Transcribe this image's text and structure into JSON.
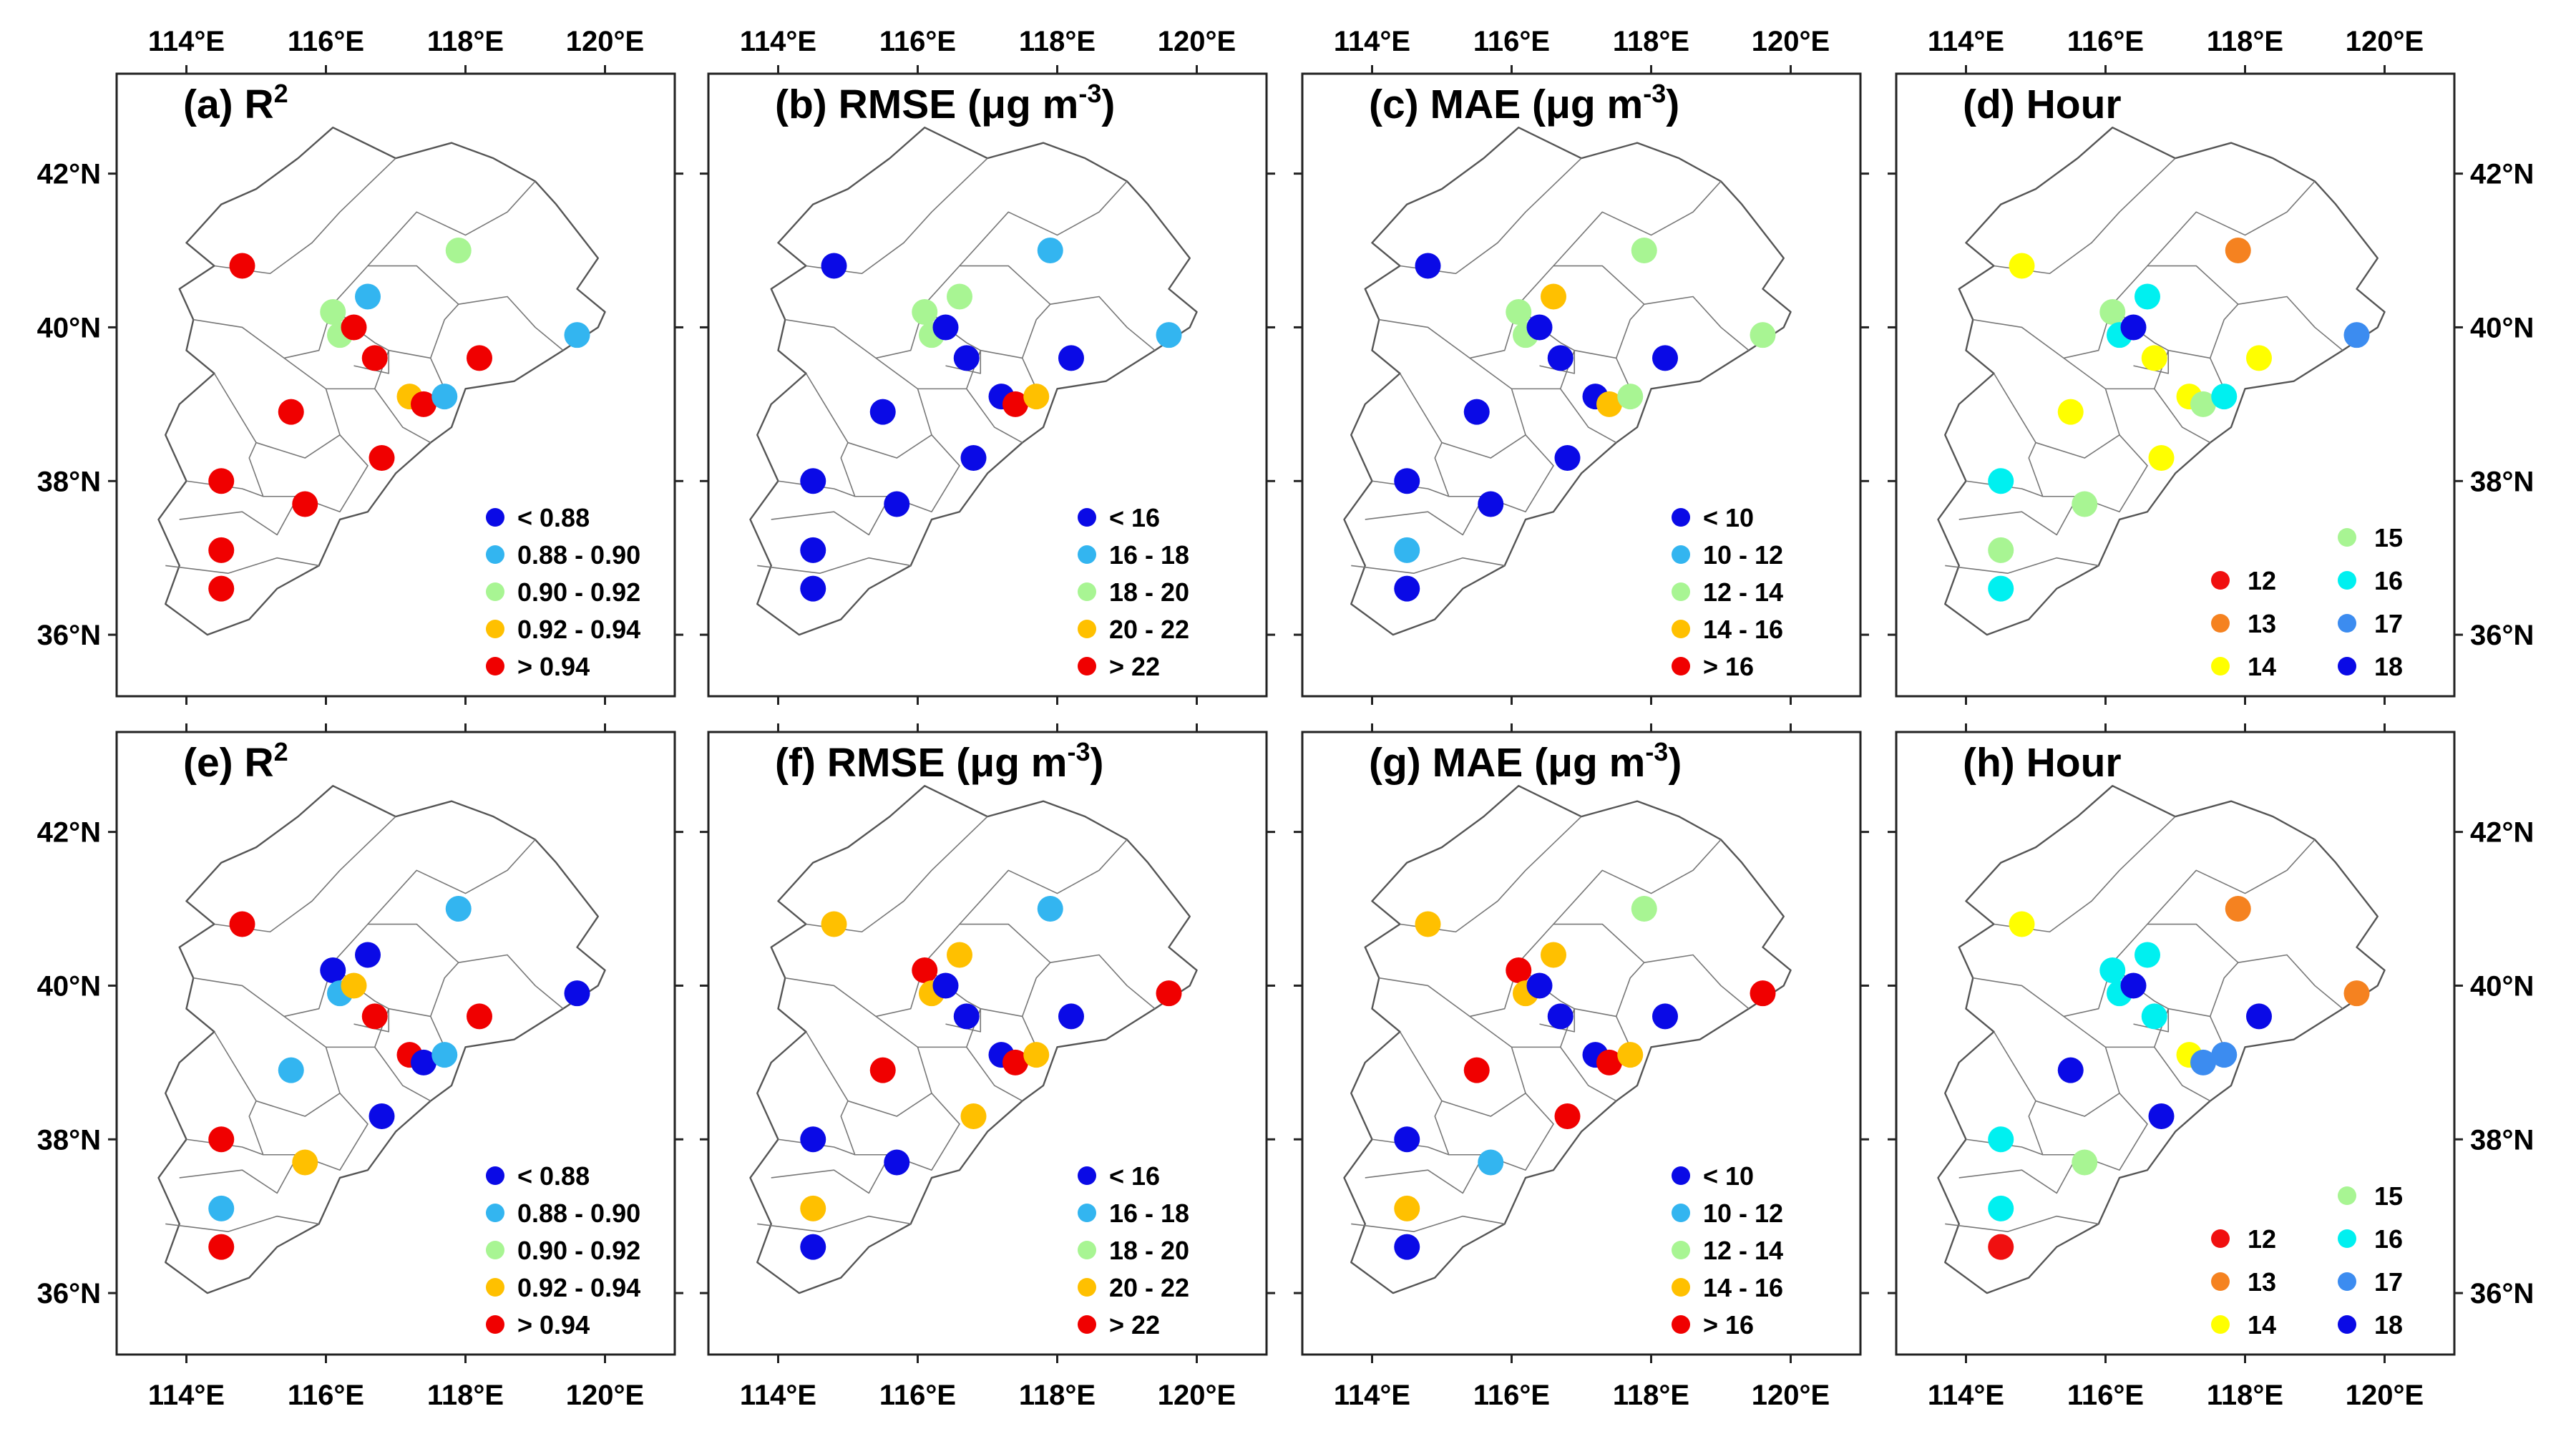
{
  "figure_title": "",
  "axes": {
    "lon_ticks": [
      "114°E",
      "116°E",
      "118°E",
      "120°E"
    ],
    "lat_ticks": [
      "42°N",
      "40°N",
      "38°N",
      "36°N"
    ],
    "lon_values": [
      114,
      116,
      118,
      120
    ],
    "lat_values": [
      42,
      40,
      38,
      36
    ],
    "lon_range": [
      113.0,
      121.0
    ],
    "lat_range": [
      35.2,
      43.3
    ]
  },
  "colors": {
    "c1": "#0a0ae6",
    "c2": "#33b5f0",
    "c3": "#a8f593",
    "c4": "#ffc000",
    "c5": "#f00000",
    "h12": "#f01010",
    "h13": "#f58220",
    "h14": "#ffff00",
    "h15": "#a8f593",
    "h16": "#00f0f0",
    "h17": "#3c8cf0",
    "h18": "#0a0ae6"
  },
  "panels": [
    {
      "label": "(a)",
      "metric": "R",
      "sup": "2",
      "unit": "",
      "legend": [
        "< 0.88",
        "0.88 - 0.90",
        "0.90 - 0.92",
        "0.92 - 0.94",
        "> 0.94"
      ]
    },
    {
      "label": "(b)",
      "metric": "RMSE",
      "sup": "-3",
      "unit": " (μg m",
      "legend": [
        "< 16",
        "16 - 18",
        "18 - 20",
        "20 - 22",
        "> 22"
      ]
    },
    {
      "label": "(c)",
      "metric": "MAE",
      "sup": "-3",
      "unit": " (μg m",
      "legend": [
        "< 10",
        "10 - 12",
        "12 - 14",
        "14 - 16",
        "> 16"
      ]
    },
    {
      "label": "(d)",
      "metric": "Hour",
      "sup": "",
      "unit": "",
      "legend": [
        "12",
        "13",
        "14",
        "15",
        "16",
        "17",
        "18"
      ]
    },
    {
      "label": "(e)",
      "metric": "R",
      "sup": "2",
      "unit": "",
      "legend": [
        "< 0.88",
        "0.88 - 0.90",
        "0.90 - 0.92",
        "0.92 - 0.94",
        "> 0.94"
      ]
    },
    {
      "label": "(f)",
      "metric": "RMSE",
      "sup": "-3",
      "unit": " (μg m",
      "legend": [
        "< 16",
        "16 - 18",
        "18 - 20",
        "20 - 22",
        "> 22"
      ]
    },
    {
      "label": "(g)",
      "metric": "MAE",
      "sup": "-3",
      "unit": " (μg m",
      "legend": [
        "< 10",
        "10 - 12",
        "12 - 14",
        "14 - 16",
        "> 16"
      ]
    },
    {
      "label": "(h)",
      "metric": "Hour",
      "sup": "",
      "unit": "",
      "legend": [
        "12",
        "13",
        "14",
        "15",
        "16",
        "17",
        "18"
      ]
    }
  ],
  "sites": [
    {
      "lon": 114.8,
      "lat": 40.8
    },
    {
      "lon": 116.1,
      "lat": 40.2
    },
    {
      "lon": 116.6,
      "lat": 40.4
    },
    {
      "lon": 116.2,
      "lat": 39.9
    },
    {
      "lon": 116.4,
      "lat": 40.0
    },
    {
      "lon": 116.7,
      "lat": 39.6
    },
    {
      "lon": 117.9,
      "lat": 41.0
    },
    {
      "lon": 117.2,
      "lat": 39.1
    },
    {
      "lon": 117.4,
      "lat": 39.0
    },
    {
      "lon": 117.7,
      "lat": 39.1
    },
    {
      "lon": 118.2,
      "lat": 39.6
    },
    {
      "lon": 119.6,
      "lat": 39.9
    },
    {
      "lon": 115.5,
      "lat": 38.9
    },
    {
      "lon": 116.8,
      "lat": 38.3
    },
    {
      "lon": 115.7,
      "lat": 37.7
    },
    {
      "lon": 114.5,
      "lat": 38.0
    },
    {
      "lon": 114.5,
      "lat": 37.1
    },
    {
      "lon": 114.5,
      "lat": 36.6
    }
  ],
  "chart_data": [
    {
      "type": "scatter",
      "panel": "(a)",
      "title": "(a) R2",
      "classes": [
        5,
        3,
        2,
        3,
        5,
        5,
        3,
        4,
        5,
        2,
        5,
        2,
        5,
        5,
        5,
        5,
        5,
        5
      ]
    },
    {
      "type": "scatter",
      "panel": "(b)",
      "title": "(b) RMSE (μg m-3)",
      "classes": [
        1,
        3,
        3,
        3,
        1,
        1,
        2,
        1,
        5,
        4,
        1,
        2,
        1,
        1,
        1,
        1,
        1,
        1
      ]
    },
    {
      "type": "scatter",
      "panel": "(c)",
      "title": "(c) MAE (μg m-3)",
      "classes": [
        1,
        3,
        4,
        3,
        1,
        1,
        3,
        1,
        4,
        3,
        1,
        3,
        1,
        1,
        1,
        1,
        2,
        1
      ]
    },
    {
      "type": "scatter",
      "panel": "(d)",
      "title": "(d) Hour",
      "classes": [
        14,
        15,
        16,
        16,
        18,
        14,
        13,
        14,
        15,
        16,
        14,
        17,
        14,
        14,
        15,
        16,
        15,
        16
      ]
    },
    {
      "type": "scatter",
      "panel": "(e)",
      "title": "(e) R2",
      "classes": [
        5,
        1,
        1,
        2,
        4,
        5,
        2,
        5,
        1,
        2,
        5,
        1,
        2,
        1,
        4,
        5,
        2,
        5
      ]
    },
    {
      "type": "scatter",
      "panel": "(f)",
      "title": "(f) RMSE (μg m-3)",
      "classes": [
        4,
        5,
        4,
        4,
        1,
        1,
        2,
        1,
        5,
        4,
        1,
        5,
        5,
        4,
        1,
        1,
        4,
        1
      ]
    },
    {
      "type": "scatter",
      "panel": "(g)",
      "title": "(g) MAE (μg m-3)",
      "classes": [
        4,
        5,
        4,
        4,
        1,
        1,
        3,
        1,
        5,
        4,
        1,
        5,
        5,
        5,
        2,
        1,
        4,
        1
      ]
    },
    {
      "type": "scatter",
      "panel": "(h)",
      "title": "(h) Hour",
      "classes": [
        14,
        16,
        16,
        16,
        18,
        16,
        13,
        14,
        17,
        17,
        18,
        13,
        18,
        18,
        15,
        16,
        16,
        12
      ]
    }
  ]
}
